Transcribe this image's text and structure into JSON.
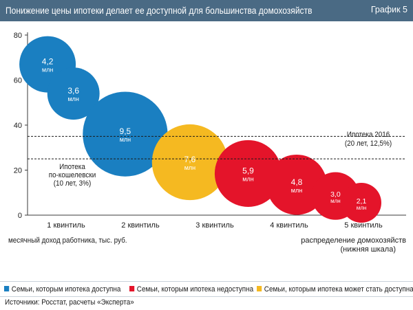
{
  "header": {
    "title": "Понижение цены ипотеки делает ее доступной для большинства домохозяйств",
    "tag": "График 5"
  },
  "legend": [
    {
      "label": "Семьи, которым ипотека доступна",
      "color": "#1a7fc1"
    },
    {
      "label": "Семьи, которым ипотека недоступна",
      "color": "#e4142a"
    },
    {
      "label": "Семьи, которым ипотека может стать доступна",
      "color": "#f5b921"
    }
  ],
  "source": "Источники: Росстат, расчеты «Эксперта»",
  "chart_data": {
    "type": "scatter",
    "title": "Понижение цены ипотеки делает ее доступной для большинства домохозяйств",
    "ylabel": "месячный доход работника, тыс. руб.",
    "xlabel": "распределение домохозяйств (нижняя шкала)",
    "ylim": [
      0,
      80
    ],
    "yticks": [
      0,
      20,
      40,
      60,
      80
    ],
    "categories": [
      "1 квинтиль",
      "2 квинтиль",
      "3 квинтиль",
      "4 квинтиль",
      "5 квинтиль"
    ],
    "bubble_unit": "млн",
    "series": [
      {
        "name": "Семьи, которым ипотека доступна",
        "color": "#1a7fc1",
        "points": [
          {
            "x": 0.65,
            "y": 67,
            "size": 4.2,
            "label": "4,2"
          },
          {
            "x": 1.05,
            "y": 54,
            "size": 3.6,
            "label": "3,6"
          },
          {
            "x": 1.85,
            "y": 36,
            "size": 9.5,
            "label": "9,5"
          }
        ]
      },
      {
        "name": "Семьи, которым ипотека может стать доступна",
        "color": "#f5b921",
        "points": [
          {
            "x": 2.85,
            "y": 23.5,
            "size": 7.6,
            "label": "7,6"
          }
        ]
      },
      {
        "name": "Семьи, которым ипотека недоступна",
        "color": "#e4142a",
        "points": [
          {
            "x": 3.75,
            "y": 18.5,
            "size": 5.9,
            "label": "5,9"
          },
          {
            "x": 4.5,
            "y": 13.5,
            "size": 4.8,
            "label": "4,8"
          },
          {
            "x": 5.1,
            "y": 8.5,
            "size": 3.0,
            "label": "3,0"
          },
          {
            "x": 5.5,
            "y": 5.5,
            "size": 2.1,
            "label": "2,1"
          }
        ]
      }
    ],
    "reference_lines": [
      {
        "y": 35,
        "label_lines": [
          "Ипотека 2016",
          "(20 лет, 12,5%)"
        ]
      },
      {
        "y": 25,
        "label_lines": [
          "Ипотека",
          "по-кошелевски",
          "(10 лет, 3%)"
        ]
      }
    ],
    "grid": false
  }
}
